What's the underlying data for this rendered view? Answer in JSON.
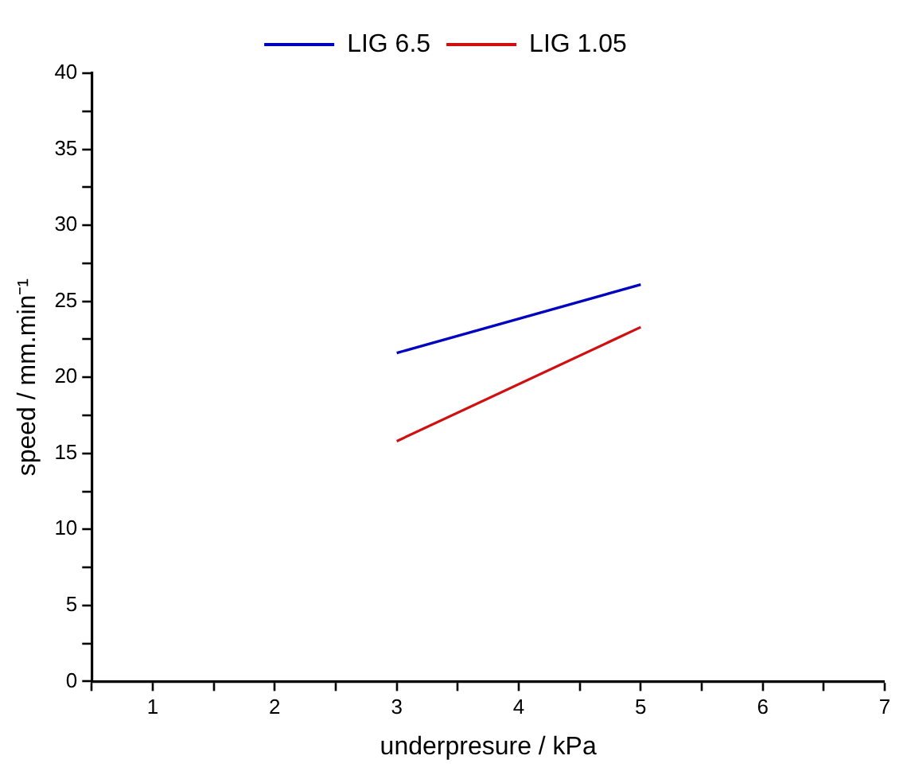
{
  "chart_data": {
    "type": "line",
    "xlabel": "underpresure / kPa",
    "ylabel": "speed / mm.min⁻¹",
    "x": [
      3,
      5
    ],
    "series": [
      {
        "name": "LIG 6.5",
        "color": "#0000c0",
        "values": [
          21.6,
          26.1
        ]
      },
      {
        "name": "LIG 1.05",
        "color": "#d01010",
        "values": [
          15.8,
          23.3
        ]
      }
    ],
    "xlim": [
      0.5,
      7
    ],
    "xticks": [
      {
        "value": 0.5,
        "label": null
      },
      1,
      {
        "value": 1.5,
        "label": null
      },
      2,
      {
        "value": 2.5,
        "label": null
      },
      3,
      {
        "value": 3.5,
        "label": null
      },
      4,
      {
        "value": 4.5,
        "label": null
      },
      5,
      {
        "value": 5.5,
        "label": null
      },
      6,
      {
        "value": 6.5,
        "label": null
      },
      7
    ],
    "ylim": [
      0,
      40
    ],
    "yticks": [
      0,
      {
        "value": 2.5,
        "label": null
      },
      5,
      {
        "value": 7.5,
        "label": null
      },
      10,
      {
        "value": 12.5,
        "label": null
      },
      15,
      {
        "value": 17.5,
        "label": null
      },
      20,
      {
        "value": 22.5,
        "label": null
      },
      25,
      {
        "value": 27.5,
        "label": null
      },
      30,
      {
        "value": 32.5,
        "label": null
      },
      35,
      {
        "value": 37.5,
        "label": null
      },
      40
    ],
    "grid": false,
    "legend": "top",
    "marker": "none",
    "line_style": "solid"
  }
}
